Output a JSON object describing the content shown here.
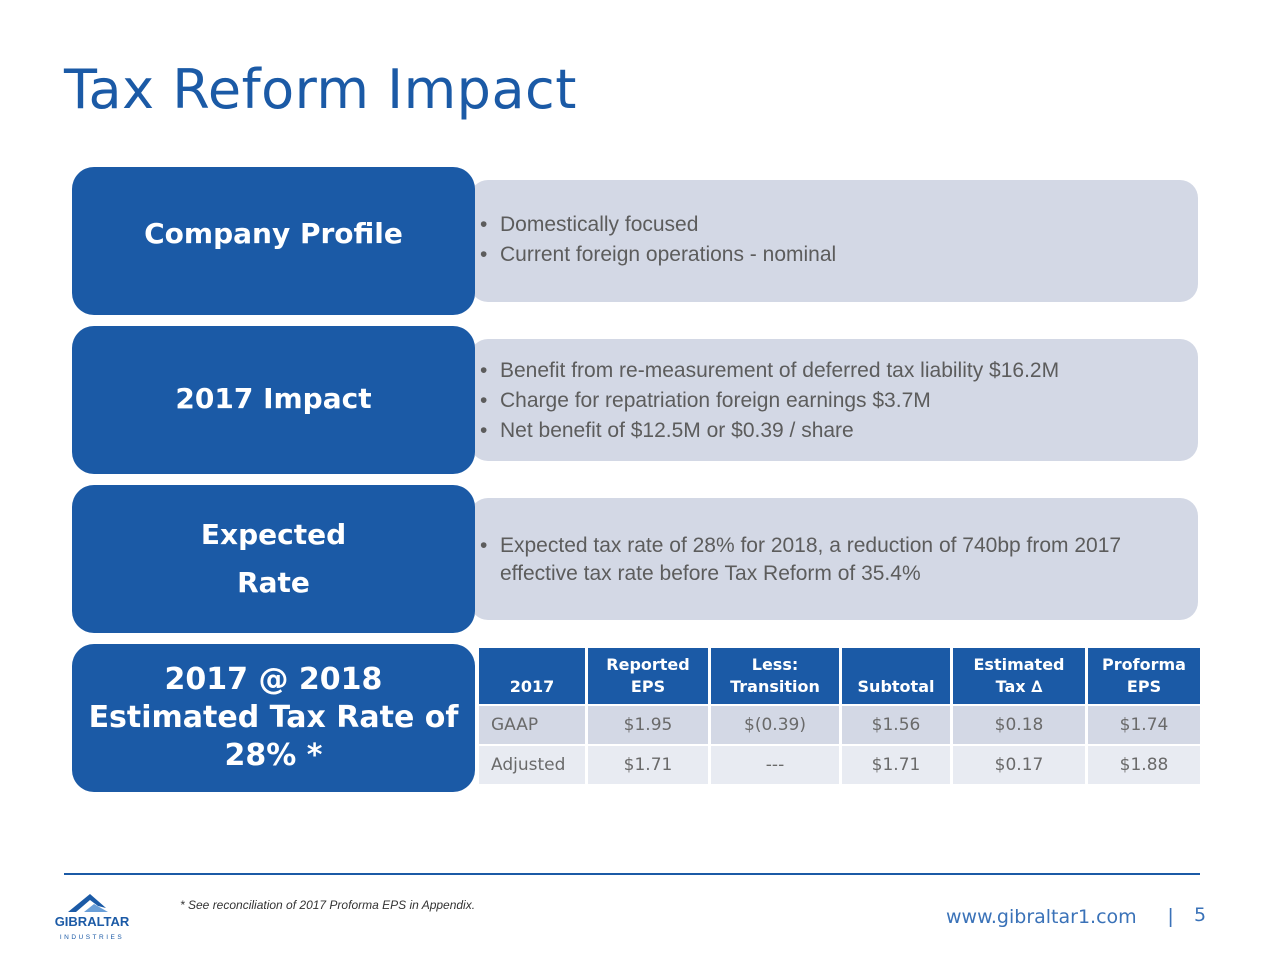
{
  "title": "Tax Reform Impact",
  "colors": {
    "brand": "#1b5aa6",
    "panel": "#d3d8e5",
    "panel_light": "#e8ebf2"
  },
  "rows": [
    {
      "label": [
        "Company Profile"
      ],
      "bullets": [
        "Domestically focused",
        "Current foreign operations - nominal"
      ]
    },
    {
      "label": [
        "2017 Impact"
      ],
      "bullets": [
        "Benefit from re-measurement of deferred tax liability $16.2M",
        "Charge for repatriation foreign earnings $3.7M",
        "Net benefit of $12.5M or $0.39 / share"
      ]
    },
    {
      "label": [
        "Expected",
        "Rate"
      ],
      "bullets": [
        "Expected tax rate of 28% for 2018, a reduction of 740bp from 2017 effective tax rate before Tax Reform of 35.4%"
      ]
    },
    {
      "label": [
        "2017 @ 2018",
        "Estimated Tax Rate of",
        "28% *"
      ]
    }
  ],
  "table": {
    "headers": [
      [
        "2017"
      ],
      [
        "Reported",
        "EPS"
      ],
      [
        "Less:",
        "Transition"
      ],
      [
        "Subtotal"
      ],
      [
        "Estimated",
        "Tax ∆"
      ],
      [
        "Proforma",
        "EPS"
      ]
    ],
    "rows": [
      [
        "GAAP",
        "$1.95",
        "$(0.39)",
        "$1.56",
        "$0.18",
        "$1.74"
      ],
      [
        "Adjusted",
        "$1.71",
        "---",
        "$1.71",
        "$0.17",
        "$1.88"
      ]
    ]
  },
  "footnote": "* See reconciliation of 2017 Proforma EPS in Appendix.",
  "logo": {
    "name": "GIBRALTAR",
    "sub": "INDUSTRIES"
  },
  "website": "www.gibraltar1.com",
  "separator": "|",
  "page_number": "5"
}
